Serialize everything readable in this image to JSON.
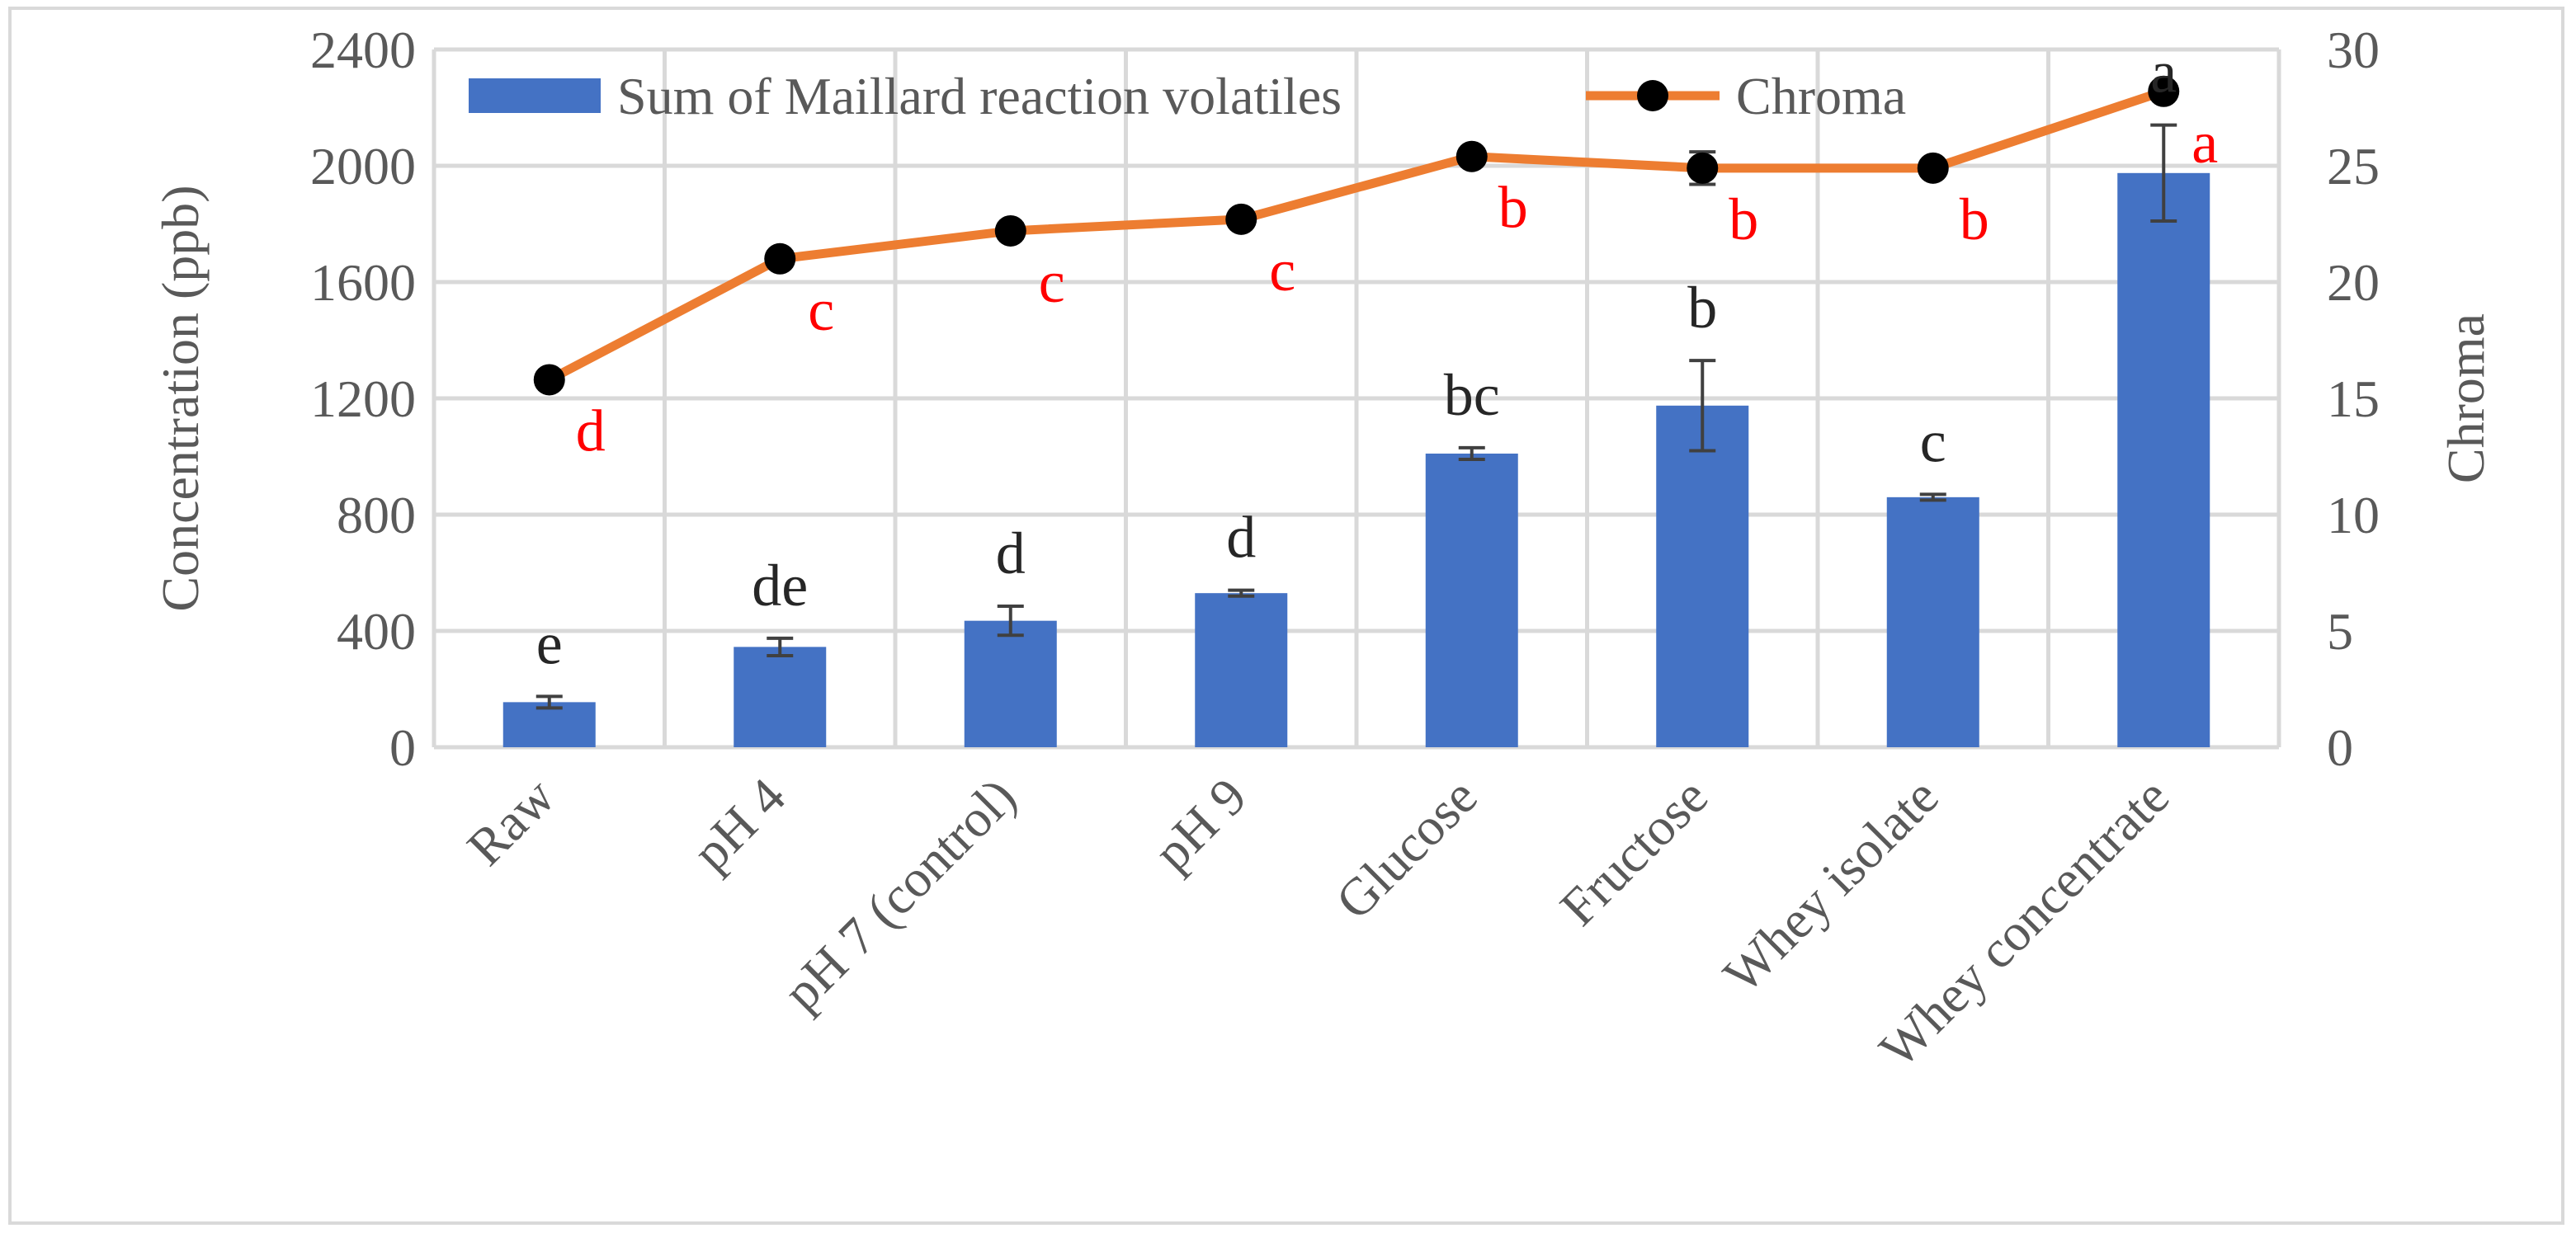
{
  "chart_data": {
    "type": "bar+line",
    "categories": [
      "Raw",
      "pH 4",
      "pH 7 (control)",
      "pH 9",
      "Glucose",
      "Fructose",
      "Whey isolate",
      "Whey concentrate"
    ],
    "series": [
      {
        "name": "Sum of Maillard reaction volatiles",
        "type": "bar",
        "axis": "left",
        "color": "#4472c4",
        "values": [
          155,
          345,
          435,
          530,
          1010,
          1175,
          860,
          1975
        ],
        "errors": [
          20,
          30,
          50,
          10,
          20,
          155,
          10,
          165
        ],
        "letters": [
          "e",
          "de",
          "d",
          "d",
          "bc",
          "b",
          "c",
          "a"
        ]
      },
      {
        "name": "Chroma",
        "type": "line",
        "axis": "right",
        "color": "#ed7d31",
        "marker_color": "#000000",
        "values": [
          15.8,
          21.0,
          22.2,
          22.7,
          25.4,
          24.9,
          24.9,
          28.2
        ],
        "errors": [
          0.3,
          0.3,
          0.3,
          0.2,
          0.3,
          0.7,
          0.2,
          0.3
        ],
        "letters": [
          "d",
          "c",
          "c",
          "c",
          "b",
          "b",
          "b",
          "a"
        ]
      }
    ],
    "ylabel": "Concentration (ppb)",
    "y2label": "Chroma",
    "ylim": [
      0,
      2400
    ],
    "yticks": [
      "0",
      "400",
      "800",
      "1200",
      "1600",
      "2000",
      "2400"
    ],
    "y2lim": [
      0,
      30
    ],
    "y2ticks": [
      "0",
      "5",
      "10",
      "15",
      "20",
      "25",
      "30"
    ],
    "grid": true,
    "legend": "top"
  }
}
